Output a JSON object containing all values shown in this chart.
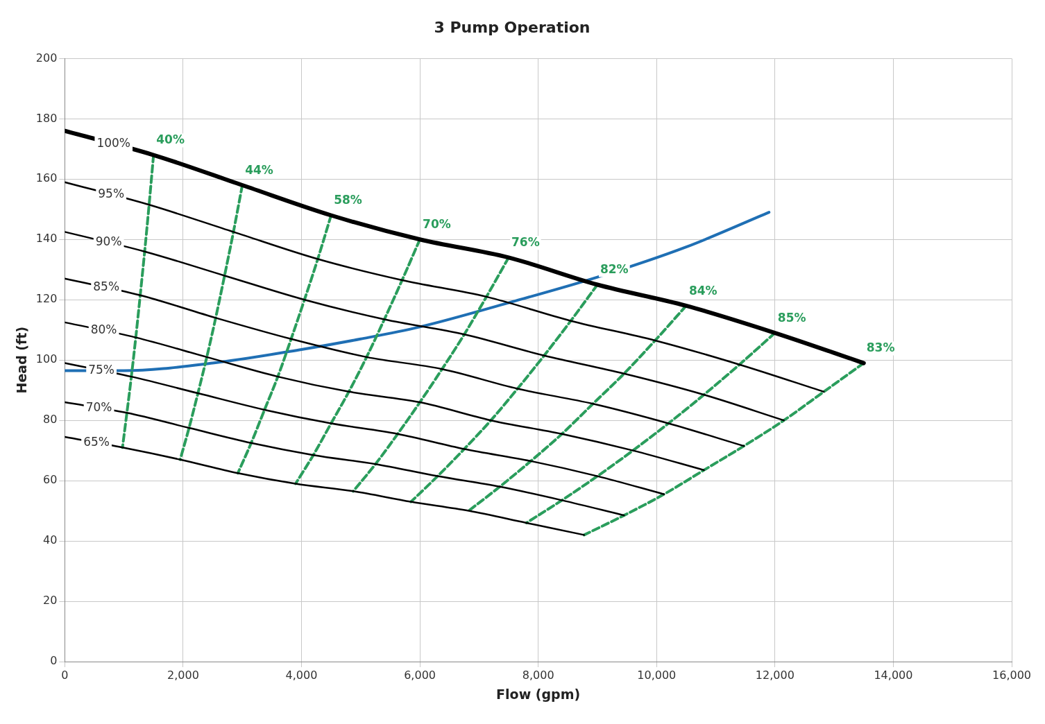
{
  "chart_data": {
    "type": "line",
    "title": "3 Pump Operation",
    "xlabel": "Flow (gpm)",
    "ylabel": "Head (ft)",
    "xlim": [
      0,
      16000
    ],
    "ylim": [
      0,
      200
    ],
    "xticks": [
      0,
      {
        "value": 2000,
        "label": "2,000"
      },
      {
        "value": 4000,
        "label": "4,000"
      },
      {
        "value": 6000,
        "label": "6,000"
      },
      {
        "value": 8000,
        "label": "8,000"
      },
      {
        "value": 10000,
        "label": "10,000"
      },
      {
        "value": 12000,
        "label": "12,000"
      },
      {
        "value": 14000,
        "label": "14,000"
      },
      {
        "value": 16000,
        "label": "16,000"
      }
    ],
    "yticks": [
      0,
      20,
      40,
      60,
      80,
      100,
      120,
      140,
      160,
      180,
      200
    ],
    "grid": true,
    "legend": false,
    "marker": "none",
    "series": [
      {
        "name": "100%",
        "color": "#000000",
        "line_style": "solid",
        "x": [
          0,
          1500,
          3000,
          4500,
          6000,
          7500,
          9000,
          10500,
          12000,
          13500
        ],
        "values": [
          176,
          168,
          158,
          148,
          140,
          134,
          125,
          118,
          109,
          99
        ]
      },
      {
        "name": "95%",
        "color": "#000000",
        "line_style": "solid",
        "x": [
          0,
          1425,
          2850,
          4275,
          5700,
          7125,
          8550,
          9975,
          11400,
          12825
        ],
        "values": [
          159,
          151.5,
          142.5,
          133.5,
          126.5,
          121,
          113,
          106.5,
          98.5,
          89.5
        ]
      },
      {
        "name": "90%",
        "color": "#000000",
        "line_style": "solid",
        "x": [
          0,
          1350,
          2700,
          4050,
          5400,
          6750,
          8100,
          9450,
          10800,
          12150
        ],
        "values": [
          142.5,
          136,
          128,
          120,
          113.5,
          108.5,
          101.5,
          95.5,
          88.5,
          80
        ]
      },
      {
        "name": "85%",
        "color": "#000000",
        "line_style": "solid",
        "x": [
          0,
          1275,
          2550,
          3825,
          5100,
          6375,
          7650,
          8925,
          10200,
          11475
        ],
        "values": [
          127,
          121.5,
          114,
          107,
          101,
          97,
          90.5,
          85.5,
          79,
          71.5
        ]
      },
      {
        "name": "80%",
        "color": "#000000",
        "line_style": "solid",
        "x": [
          0,
          1200,
          2400,
          3600,
          4800,
          6000,
          7200,
          8400,
          9600,
          10800
        ],
        "values": [
          112.5,
          107.5,
          101,
          94.5,
          89.5,
          86,
          80,
          75.5,
          70,
          63.5
        ]
      },
      {
        "name": "75%",
        "color": "#000000",
        "line_style": "solid",
        "x": [
          0,
          1125,
          2250,
          3375,
          4500,
          5625,
          6750,
          7875,
          9000,
          10125
        ],
        "values": [
          99,
          94.5,
          89,
          83.5,
          79,
          75.5,
          70.5,
          66.5,
          61.5,
          55.5
        ]
      },
      {
        "name": "70%",
        "color": "#000000",
        "line_style": "solid",
        "x": [
          0,
          1050,
          2100,
          3150,
          4200,
          5250,
          6300,
          7350,
          8400,
          9450
        ],
        "values": [
          86,
          82.5,
          77.5,
          72.5,
          68.5,
          65.5,
          61.5,
          58,
          53.5,
          48.5
        ]
      },
      {
        "name": "65%",
        "color": "#000000",
        "line_style": "solid",
        "x": [
          0,
          975,
          1950,
          2925,
          3900,
          4875,
          5850,
          6825,
          7800,
          8775
        ],
        "values": [
          74.5,
          71,
          67,
          62.5,
          59,
          56.5,
          53,
          50,
          46,
          42
        ]
      },
      {
        "name": "40%",
        "color": "#2a9d5c",
        "line_style": "dashed",
        "x": [
          1500,
          1425,
          1350,
          1275,
          1200,
          1125,
          1050,
          975
        ],
        "values": [
          168,
          151.5,
          136,
          121.5,
          107.5,
          94.5,
          82.5,
          71
        ]
      },
      {
        "name": "44%",
        "color": "#2a9d5c",
        "line_style": "dashed",
        "x": [
          3000,
          2850,
          2700,
          2550,
          2400,
          2250,
          2100,
          1950
        ],
        "values": [
          158,
          142.5,
          128,
          114,
          101,
          89,
          77.5,
          67
        ]
      },
      {
        "name": "58%",
        "color": "#2a9d5c",
        "line_style": "dashed",
        "x": [
          4500,
          4275,
          4050,
          3825,
          3600,
          3375,
          3150,
          2925
        ],
        "values": [
          148,
          133.5,
          120,
          107,
          94.5,
          83.5,
          72.5,
          62.5
        ]
      },
      {
        "name": "70%",
        "color": "#2a9d5c",
        "line_style": "dashed",
        "x": [
          6000,
          5700,
          5400,
          5100,
          4800,
          4500,
          4200,
          3900
        ],
        "values": [
          140,
          126.5,
          113.5,
          101,
          89.5,
          79,
          68.5,
          59
        ]
      },
      {
        "name": "76%",
        "color": "#2a9d5c",
        "line_style": "dashed",
        "x": [
          7500,
          7125,
          6750,
          6375,
          6000,
          5625,
          5250,
          4875
        ],
        "values": [
          134,
          121,
          108.5,
          97,
          86,
          75.5,
          65.5,
          56.5
        ]
      },
      {
        "name": "82%",
        "color": "#2a9d5c",
        "line_style": "dashed",
        "x": [
          9000,
          8550,
          8100,
          7650,
          7200,
          6750,
          6300,
          5850
        ],
        "values": [
          125,
          113,
          101.5,
          90.5,
          80,
          70.5,
          61.5,
          53
        ]
      },
      {
        "name": "84%",
        "color": "#2a9d5c",
        "line_style": "dashed",
        "x": [
          10500,
          9975,
          9450,
          8925,
          8400,
          7875,
          7350,
          6825
        ],
        "values": [
          118,
          106.5,
          95.5,
          85.5,
          75.5,
          66.5,
          58,
          50
        ]
      },
      {
        "name": "85%",
        "color": "#2a9d5c",
        "line_style": "dashed",
        "x": [
          12000,
          11400,
          10800,
          10200,
          9600,
          9000,
          8400,
          7800
        ],
        "values": [
          109,
          98.5,
          88.5,
          79,
          70,
          61.5,
          53.5,
          46
        ]
      },
      {
        "name": "83%",
        "color": "#2a9d5c",
        "line_style": "dashed",
        "x": [
          13500,
          12825,
          12150,
          11475,
          10800,
          10125,
          9450,
          8775
        ],
        "values": [
          99,
          89.5,
          80,
          71.5,
          63.5,
          55.5,
          48.5,
          42
        ]
      },
      {
        "color": "#1f6fb4",
        "line_style": "solid",
        "x": [
          0,
          1000,
          2500,
          4000,
          5000,
          6000,
          7500,
          9000,
          10500,
          11900
        ],
        "values": [
          96.5,
          96.5,
          99,
          103.5,
          107,
          111,
          119,
          127.5,
          137.5,
          149
        ]
      }
    ]
  }
}
